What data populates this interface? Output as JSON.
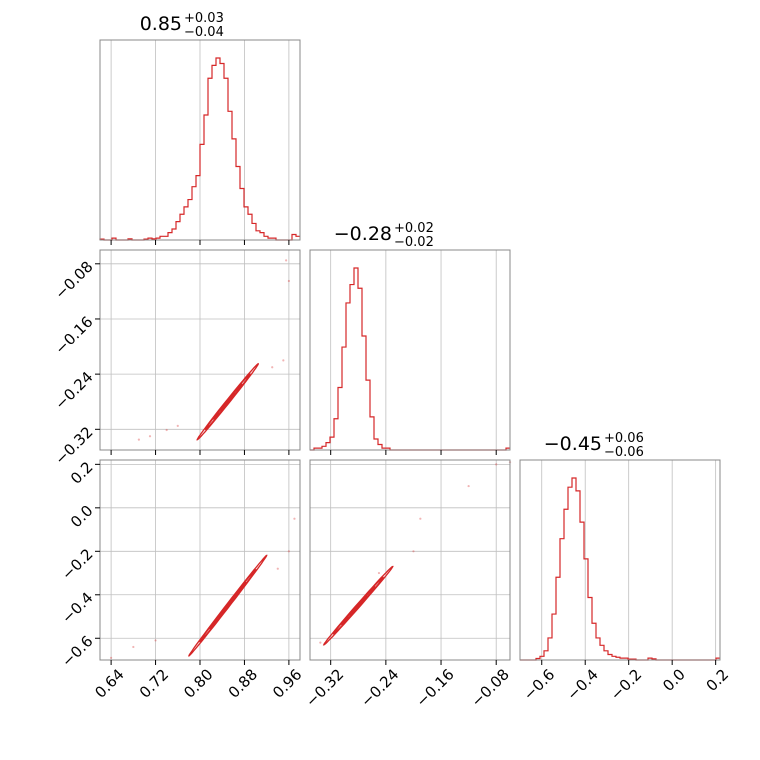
{
  "chart_data": {
    "type": "corner",
    "color": "#d62728",
    "grid": true,
    "parameters": [
      {
        "median": "0.85",
        "plus": "+0.03",
        "minus": "−0.04",
        "range": [
          0.62,
          0.98
        ],
        "ticks": [
          0.64,
          0.72,
          0.8,
          0.88,
          0.96
        ],
        "tick_labels": [
          "0.64",
          "0.72",
          "0.80",
          "0.88",
          "0.96"
        ],
        "hist": {
          "edges_start": 0.62,
          "bin_width": 0.0072,
          "counts": [
            0.5,
            0,
            0,
            1,
            0,
            0,
            0,
            0.6,
            0,
            0,
            0,
            0.5,
            1,
            0.6,
            1,
            2,
            2,
            4,
            6,
            10,
            14,
            18,
            22,
            29,
            35,
            52,
            68,
            88,
            95,
            99,
            96,
            88,
            70,
            55,
            40,
            28,
            18,
            14,
            9,
            5,
            4,
            2,
            1,
            1,
            0,
            0,
            0,
            0,
            3,
            2
          ]
        }
      },
      {
        "median": "−0.28",
        "plus": "+0.02",
        "minus": "−0.02",
        "range": [
          -0.35,
          -0.06
        ],
        "ticks": [
          -0.32,
          -0.24,
          -0.16,
          -0.08
        ],
        "tick_labels": [
          "−0.32",
          "−0.24",
          "−0.16",
          "−0.08"
        ],
        "hist": {
          "edges_start": -0.35,
          "bin_width": 0.0058,
          "counts": [
            0,
            1,
            1,
            2,
            4,
            7,
            17,
            34,
            56,
            80,
            90,
            99,
            88,
            62,
            38,
            18,
            6,
            3,
            1,
            1,
            0,
            0,
            0,
            0,
            0,
            0,
            0,
            0,
            0,
            0,
            0,
            0,
            0,
            0,
            0,
            0,
            0,
            0,
            0,
            0,
            0,
            0,
            0,
            0,
            0,
            0,
            0,
            0,
            0,
            1
          ]
        }
      },
      {
        "median": "−0.45",
        "plus": "+0.06",
        "minus": "−0.06",
        "range": [
          -0.7,
          0.22
        ],
        "ticks": [
          -0.6,
          -0.4,
          -0.2,
          0.0,
          0.2
        ],
        "tick_labels": [
          "−0.6",
          "−0.4",
          "−0.2",
          "0.0",
          "0.2"
        ],
        "hist": {
          "edges_start": -0.7,
          "bin_width": 0.0184,
          "counts": [
            0,
            0,
            0,
            0,
            0.8,
            2,
            5,
            12,
            25,
            45,
            66,
            82,
            94,
            99,
            92,
            75,
            55,
            34,
            20,
            12,
            8,
            5,
            3,
            2,
            1.5,
            1,
            1,
            0.5,
            0.5,
            0,
            0,
            0,
            1,
            0.6,
            0,
            0,
            0,
            0,
            0,
            0,
            0,
            0,
            0,
            0,
            0,
            0,
            0,
            0,
            0,
            1
          ]
        }
      }
    ],
    "pairs": [
      {
        "x_param": 0,
        "y_param": 1,
        "points": [
          [
            0.69,
            -0.335
          ],
          [
            0.74,
            -0.321
          ],
          [
            0.96,
            -0.105
          ],
          [
            0.955,
            -0.075
          ],
          [
            0.93,
            -0.23
          ],
          [
            0.71,
            -0.33
          ],
          [
            0.76,
            -0.315
          ],
          [
            0.95,
            -0.22
          ]
        ],
        "contours": [
          {
            "cx": 0.85,
            "cy": -0.28,
            "a": 0.055,
            "b": 0.004
          },
          {
            "cx": 0.85,
            "cy": -0.28,
            "a": 0.04,
            "b": 0.003
          },
          {
            "cx": 0.85,
            "cy": -0.28,
            "a": 0.025,
            "b": 0.002
          },
          {
            "cx": 0.85,
            "cy": -0.28,
            "a": 0.012,
            "b": 0.0015
          }
        ]
      },
      {
        "x_param": 0,
        "y_param": 2,
        "points": [
          [
            0.64,
            -0.69
          ],
          [
            0.68,
            -0.64
          ],
          [
            0.72,
            -0.61
          ],
          [
            0.96,
            -0.2
          ],
          [
            0.97,
            -0.05
          ],
          [
            0.94,
            -0.28
          ]
        ],
        "contours": [
          {
            "cx": 0.85,
            "cy": -0.45,
            "a": 0.07,
            "b": 0.012
          },
          {
            "cx": 0.85,
            "cy": -0.45,
            "a": 0.05,
            "b": 0.009
          },
          {
            "cx": 0.85,
            "cy": -0.45,
            "a": 0.032,
            "b": 0.006
          },
          {
            "cx": 0.85,
            "cy": -0.45,
            "a": 0.016,
            "b": 0.004
          }
        ]
      },
      {
        "x_param": 1,
        "y_param": 2,
        "points": [
          [
            -0.335,
            -0.62
          ],
          [
            -0.2,
            -0.2
          ],
          [
            -0.19,
            -0.05
          ],
          [
            -0.12,
            0.1
          ],
          [
            -0.08,
            0.2
          ],
          [
            -0.06,
            0.21
          ],
          [
            -0.25,
            -0.3
          ]
        ],
        "contours": [
          {
            "cx": -0.28,
            "cy": -0.45,
            "a": 0.05,
            "b": 0.012
          },
          {
            "cx": -0.28,
            "cy": -0.45,
            "a": 0.036,
            "b": 0.009
          },
          {
            "cx": -0.28,
            "cy": -0.45,
            "a": 0.024,
            "b": 0.006
          },
          {
            "cx": -0.28,
            "cy": -0.45,
            "a": 0.012,
            "b": 0.004
          }
        ]
      }
    ]
  }
}
